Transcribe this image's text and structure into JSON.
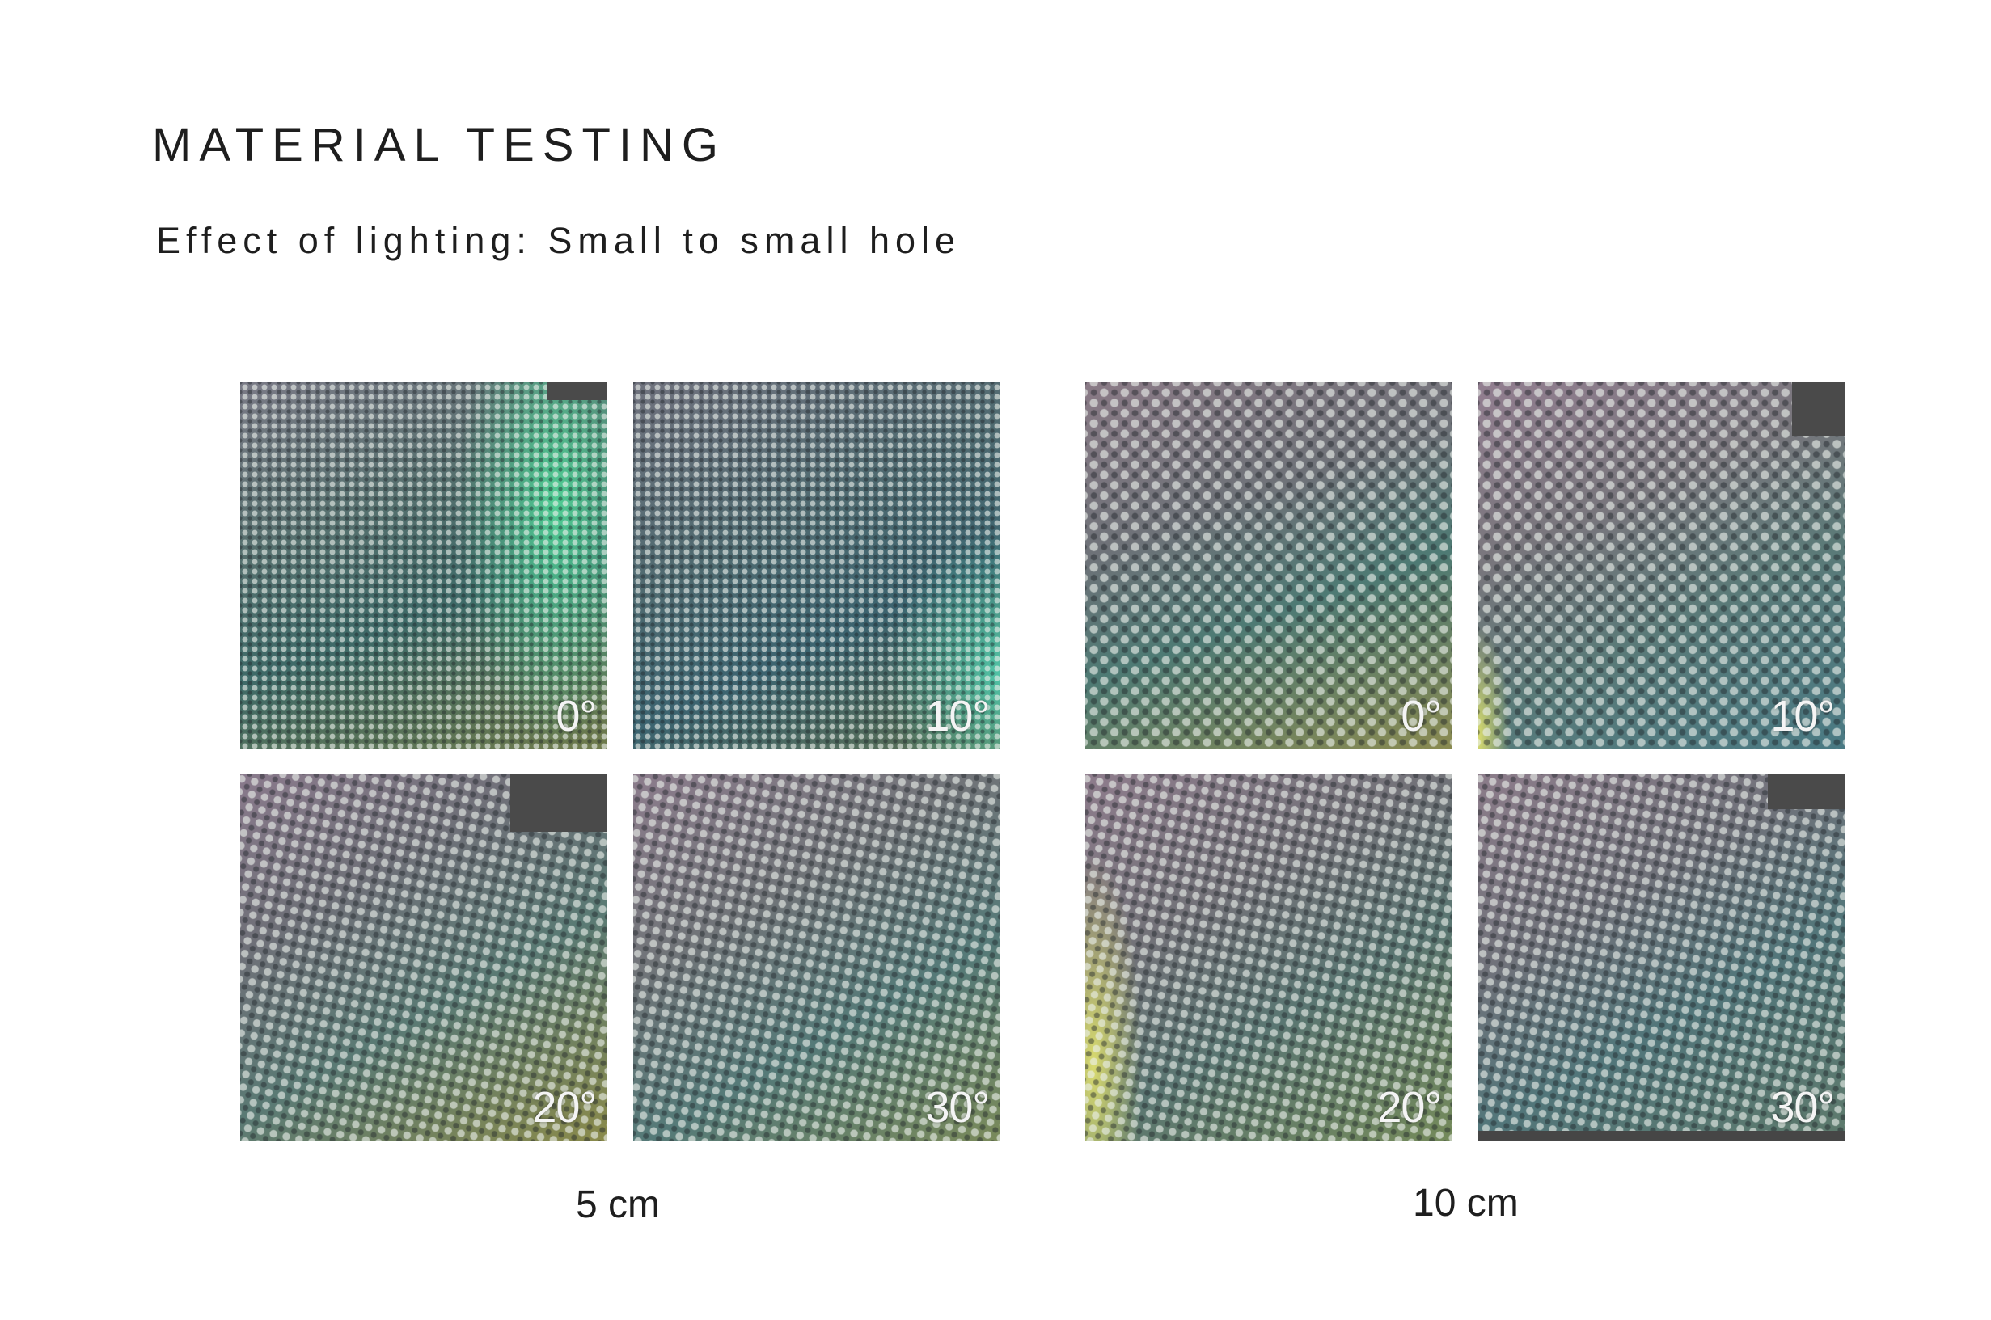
{
  "header": {
    "title": "MATERIAL TESTING",
    "subtitle": "Effect of lighting: Small to small hole"
  },
  "groups": [
    {
      "caption": "5 cm",
      "tiles": [
        {
          "angle": "0°"
        },
        {
          "angle": "10°"
        },
        {
          "angle": "20°"
        },
        {
          "angle": "30°"
        }
      ]
    },
    {
      "caption": "10 cm",
      "tiles": [
        {
          "angle": "0°"
        },
        {
          "angle": "10°"
        },
        {
          "angle": "20°"
        },
        {
          "angle": "30°"
        }
      ]
    }
  ],
  "colors": {
    "background": "#ffffff",
    "text": "#1e1e1e",
    "angle_label": "#f4f4f4",
    "teal": "#4fb89a",
    "olive": "#8a8a4a",
    "mauve": "#8a7888",
    "blue_teal": "#3f7f8c"
  }
}
